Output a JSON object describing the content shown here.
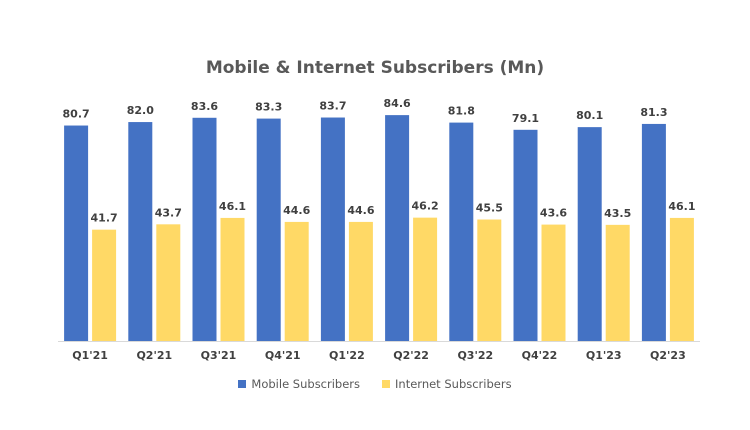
{
  "chart_data": {
    "type": "bar",
    "title": "Mobile & Internet Subscribers (Mn)",
    "categories": [
      "Q1'21",
      "Q2'21",
      "Q3'21",
      "Q4'21",
      "Q1'22",
      "Q2'22",
      "Q3'22",
      "Q4'22",
      "Q1'23",
      "Q2'23"
    ],
    "series": [
      {
        "name": "Mobile Subscribers",
        "color": "#4472C4",
        "values": [
          80.7,
          82.0,
          83.6,
          83.3,
          83.7,
          84.6,
          81.8,
          79.1,
          80.1,
          81.3
        ]
      },
      {
        "name": "Internet Subscribers",
        "color": "#FFD966",
        "values": [
          41.7,
          43.7,
          46.1,
          44.6,
          44.6,
          46.2,
          45.5,
          43.6,
          43.5,
          46.1
        ]
      }
    ],
    "ylim": [
      0,
      100
    ],
    "grid": false,
    "legend_position": "bottom",
    "data_labels": true
  }
}
